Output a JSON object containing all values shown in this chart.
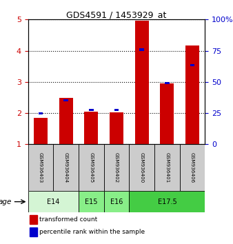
{
  "title": "GDS4591 / 1453929_at",
  "samples": [
    "GSM936403",
    "GSM936404",
    "GSM936405",
    "GSM936402",
    "GSM936400",
    "GSM936401",
    "GSM936406"
  ],
  "red_values": [
    1.85,
    2.48,
    2.05,
    2.03,
    4.97,
    2.95,
    4.17
  ],
  "blue_values": [
    1.96,
    2.38,
    2.06,
    2.06,
    4.0,
    2.92,
    3.5
  ],
  "red_color": "#cc0000",
  "blue_color": "#0000cc",
  "ylim_left": [
    1,
    5
  ],
  "ylim_right": [
    0,
    100
  ],
  "yticks_left": [
    1,
    2,
    3,
    4,
    5
  ],
  "yticks_right": [
    0,
    25,
    50,
    75,
    100
  ],
  "yticklabels_right": [
    "0",
    "25",
    "50",
    "75",
    "100%"
  ],
  "age_groups": [
    {
      "label": "E14",
      "start": 0,
      "end": 2,
      "color": "#d4f5d4"
    },
    {
      "label": "E15",
      "start": 2,
      "end": 3,
      "color": "#88ee88"
    },
    {
      "label": "E16",
      "start": 3,
      "end": 4,
      "color": "#88ee88"
    },
    {
      "label": "E17.5",
      "start": 4,
      "end": 7,
      "color": "#44cc44"
    }
  ],
  "bar_width": 0.55,
  "blue_bar_width": 0.18,
  "background_color": "#ffffff",
  "legend_red": "transformed count",
  "legend_blue": "percentile rank within the sample",
  "xlabel_age": "age",
  "sample_bg_color": "#cccccc"
}
